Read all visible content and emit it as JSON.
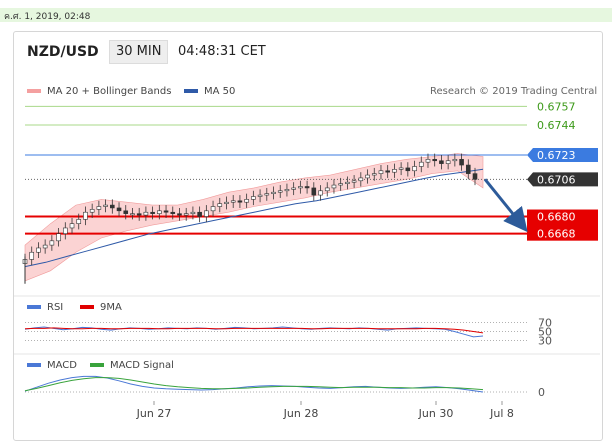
{
  "timestamp": "ค.ศ. 1, 2019, 02:48",
  "header": {
    "pair": "NZD/USD",
    "timeframe": "30 MIN",
    "time": "04:48:31 CET"
  },
  "legend": {
    "ma20_bb": "MA 20 + Bollinger Bands",
    "ma50": "MA 50",
    "credit": "Research © 2019 Trading Central",
    "rsi": "RSI",
    "ma9": "9MA",
    "macd": "MACD",
    "macd_signal": "MACD Signal"
  },
  "colors": {
    "bb_fill": "#f9c4c4",
    "ma50": "#2f5aa8",
    "resistance": "#7cbf3c",
    "pivot": "#3b7be0",
    "support": "#e60000",
    "arrow": "#2d5b9a",
    "price_tag": "#333333"
  },
  "chart_data": [
    {
      "type": "candlestick",
      "title": "NZD/USD",
      "x_tick_labels": [
        "Jun 27",
        "Jun 28",
        "Jun 30",
        "Jul 8"
      ],
      "ylim": [
        0.663,
        0.6765
      ],
      "levels": [
        {
          "value": "0.6757",
          "kind": "resistance"
        },
        {
          "value": "0.6744",
          "kind": "resistance"
        },
        {
          "value": "0.6723",
          "kind": "pivot"
        },
        {
          "value": "0.6706",
          "kind": "current"
        },
        {
          "value": "0.6680",
          "kind": "support"
        },
        {
          "value": "0.6668",
          "kind": "support"
        }
      ],
      "close_series": [
        0.665,
        0.6655,
        0.6658,
        0.666,
        0.6663,
        0.6668,
        0.6672,
        0.6675,
        0.6678,
        0.6683,
        0.6685,
        0.6687,
        0.6688,
        0.6686,
        0.6684,
        0.6682,
        0.6682,
        0.6681,
        0.6683,
        0.6682,
        0.6684,
        0.6683,
        0.6682,
        0.6681,
        0.6682,
        0.6683,
        0.668,
        0.6684,
        0.6687,
        0.6689,
        0.669,
        0.6691,
        0.669,
        0.6692,
        0.6694,
        0.6695,
        0.6696,
        0.6697,
        0.6698,
        0.6699,
        0.67,
        0.6701,
        0.67,
        0.6695,
        0.6698,
        0.67,
        0.6702,
        0.6703,
        0.6704,
        0.6705,
        0.6707,
        0.6709,
        0.671,
        0.6712,
        0.6711,
        0.6713,
        0.6714,
        0.6712,
        0.6715,
        0.6718,
        0.672,
        0.6719,
        0.6717,
        0.6719,
        0.672,
        0.6716,
        0.671,
        0.6706
      ],
      "ma50_series": [
        0.6645,
        0.6648,
        0.6652,
        0.6656,
        0.666,
        0.6664,
        0.6668,
        0.6671,
        0.6674,
        0.6677,
        0.668,
        0.6683,
        0.6686,
        0.6689,
        0.6691,
        0.6694,
        0.6697,
        0.67,
        0.6703,
        0.6706,
        0.6709,
        0.6711,
        0.6713
      ],
      "bb_upper": [
        0.666,
        0.6675,
        0.6688,
        0.6692,
        0.669,
        0.6688,
        0.6688,
        0.6692,
        0.6697,
        0.67,
        0.6704,
        0.6707,
        0.6709,
        0.6713,
        0.6717,
        0.672,
        0.6722,
        0.6724,
        0.6722
      ],
      "bb_lower": [
        0.6635,
        0.6642,
        0.6655,
        0.6665,
        0.667,
        0.6674,
        0.6677,
        0.668,
        0.6683,
        0.6687,
        0.669,
        0.6693,
        0.6697,
        0.67,
        0.6703,
        0.6706,
        0.671,
        0.6712,
        0.67
      ],
      "arrow_target": 0.6674
    },
    {
      "type": "line",
      "title": "RSI",
      "series": [
        {
          "name": "RSI"
        },
        {
          "name": "9MA"
        }
      ],
      "y_tick_labels": [
        "70",
        "50",
        "30"
      ],
      "ylim": [
        20,
        80
      ],
      "rsi": [
        55,
        58,
        60,
        57,
        54,
        56,
        59,
        58,
        55,
        53,
        56,
        58,
        57,
        55,
        56,
        58,
        57,
        56,
        58,
        57,
        55,
        57,
        59,
        58,
        56,
        57,
        58,
        60,
        58,
        56,
        55,
        57,
        58,
        57,
        56,
        58,
        57,
        55,
        53,
        56,
        57,
        58,
        57,
        56,
        55,
        50,
        44,
        38,
        40
      ],
      "ma9": [
        56,
        57,
        57,
        58,
        57,
        56,
        56,
        57,
        57,
        56,
        56,
        57,
        57,
        57,
        56,
        56,
        57,
        57,
        57,
        57,
        56,
        56,
        57,
        57,
        57,
        57,
        57,
        57,
        57,
        57,
        56,
        56,
        57,
        57,
        57,
        57,
        57,
        56,
        56,
        56,
        56,
        56,
        57,
        57,
        56,
        55,
        53,
        50,
        47
      ]
    },
    {
      "type": "line",
      "title": "MACD",
      "series": [
        {
          "name": "MACD"
        },
        {
          "name": "MACD Signal"
        }
      ],
      "y_tick_labels": [
        "0"
      ],
      "ylim": [
        -1,
        5
      ],
      "macd": [
        0.2,
        1.2,
        2.2,
        3.0,
        3.6,
        3.9,
        3.9,
        3.5,
        2.8,
        2.0,
        1.4,
        1.0,
        0.8,
        0.7,
        0.6,
        0.5,
        0.6,
        0.8,
        1.0,
        1.3,
        1.5,
        1.6,
        1.5,
        1.4,
        1.2,
        1.0,
        0.9,
        1.1,
        1.3,
        1.4,
        1.2,
        1.0,
        0.9,
        1.0,
        1.2,
        1.3,
        1.1,
        0.8,
        0.4,
        0.0
      ],
      "signal": [
        0.3,
        0.9,
        1.6,
        2.3,
        2.9,
        3.3,
        3.6,
        3.6,
        3.4,
        3.0,
        2.5,
        2.0,
        1.6,
        1.3,
        1.1,
        0.9,
        0.8,
        0.8,
        0.9,
        1.0,
        1.2,
        1.3,
        1.4,
        1.4,
        1.4,
        1.3,
        1.2,
        1.1,
        1.2,
        1.2,
        1.2,
        1.1,
        1.1,
        1.0,
        1.0,
        1.1,
        1.1,
        1.0,
        0.8,
        0.6
      ]
    }
  ]
}
